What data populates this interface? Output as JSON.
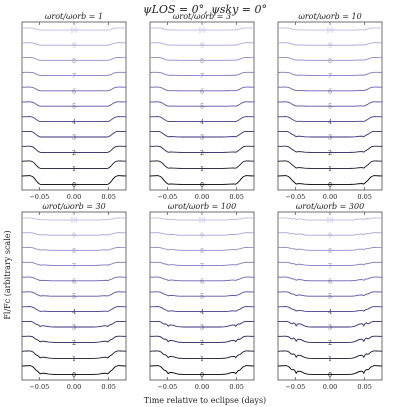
{
  "figure": {
    "title": "ψLOS = 0°, ψsky = 0°",
    "xlabel": "Time relative to eclipse (days)",
    "ylabel": "Fl/Fc (arbitrary scale)"
  },
  "chart_data": {
    "type": "line",
    "title": "ψLOS = 0°, ψsky = 0°",
    "xlabel": "Time relative to eclipse (days)",
    "ylabel": "Fl/Fc (arbitrary scale)",
    "xlim": [
      -0.075,
      0.075
    ],
    "xticks": [
      -0.05,
      0.0,
      0.05
    ],
    "xtick_labels": [
      "−0.05",
      "0.00",
      "0.05"
    ],
    "levels": [
      0,
      1,
      2,
      3,
      4,
      5,
      6,
      7,
      8,
      9,
      10
    ],
    "level_colors": [
      "#000000",
      "#1c1530",
      "#2a1f57",
      "#3a2e78",
      "#4a3c8f",
      "#5b4ea3",
      "#6d62b3",
      "#8077c0",
      "#938dcc",
      "#a7a3d8",
      "#bcb9e2"
    ],
    "curve_profile": {
      "t": [
        -0.075,
        -0.065,
        -0.058,
        -0.052,
        -0.046,
        0.0,
        0.046,
        0.052,
        0.058,
        0.065,
        0.075
      ],
      "note_units": "relative flux"
    },
    "panels": [
      {
        "label": "ωrot/ωorb = 1",
        "depth_scale": [
          1.4,
          1.2,
          1.0,
          0.9,
          0.8,
          0.7,
          0.6,
          0.5,
          0.45,
          0.4,
          0.35
        ],
        "bump": 0.0
      },
      {
        "label": "ωrot/ωorb = 3",
        "depth_scale": [
          1.4,
          1.2,
          1.0,
          0.9,
          0.8,
          0.7,
          0.6,
          0.5,
          0.45,
          0.4,
          0.35
        ],
        "bump": 0.1
      },
      {
        "label": "ωrot/ωorb = 10",
        "depth_scale": [
          1.4,
          1.2,
          1.0,
          0.9,
          0.8,
          0.7,
          0.6,
          0.5,
          0.45,
          0.4,
          0.35
        ],
        "bump": 0.2
      },
      {
        "label": "ωrot/ωorb = 30",
        "depth_scale": [
          1.4,
          1.2,
          1.0,
          0.9,
          0.8,
          0.7,
          0.6,
          0.5,
          0.45,
          0.4,
          0.35
        ],
        "bump": 0.3
      },
      {
        "label": "ωrot/ωorb = 100",
        "depth_scale": [
          1.4,
          1.2,
          1.0,
          0.9,
          0.8,
          0.7,
          0.6,
          0.5,
          0.45,
          0.4,
          0.35
        ],
        "bump": 0.5
      },
      {
        "label": "ωrot/ωorb = 300",
        "depth_scale": [
          1.4,
          1.2,
          1.0,
          0.9,
          0.8,
          0.7,
          0.6,
          0.5,
          0.45,
          0.4,
          0.35
        ],
        "bump": 0.8
      }
    ]
  }
}
